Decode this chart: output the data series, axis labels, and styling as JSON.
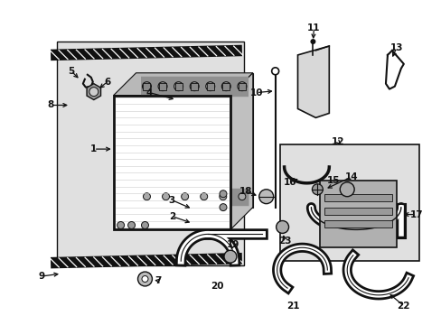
{
  "background": "#ffffff",
  "fig_width": 4.89,
  "fig_height": 3.6,
  "dpi": 100,
  "dark": "#111111",
  "gray_light": "#d0d0d0",
  "gray_med": "#aaaaaa",
  "gray_dark": "#888888"
}
